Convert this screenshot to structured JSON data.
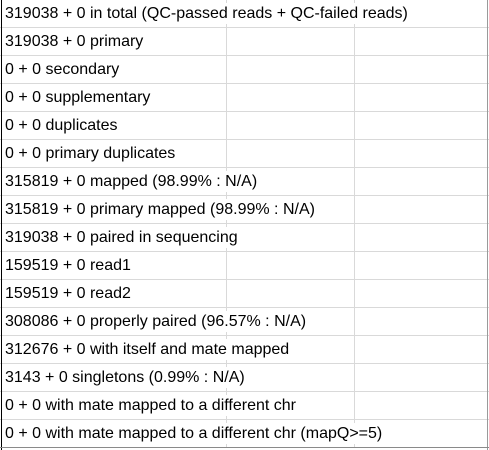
{
  "rows": [
    "319038 + 0 in total (QC-passed reads + QC-failed reads)",
    "319038 + 0 primary",
    "0 + 0 secondary",
    "0 + 0 supplementary",
    "0 + 0 duplicates",
    "0 + 0 primary duplicates",
    "315819 + 0 mapped (98.99% : N/A)",
    "315819 + 0 primary mapped (98.99% : N/A)",
    "319038 + 0 paired in sequencing",
    "159519 + 0 read1",
    "159519 + 0 read2",
    "308086 + 0 properly paired (96.57% : N/A)",
    "312676 + 0 with itself and mate mapped",
    "3143 + 0 singletons (0.99% : N/A)",
    "0 + 0 with mate mapped to a different chr",
    "0 + 0 with mate mapped to a different chr (mapQ>=5)"
  ]
}
